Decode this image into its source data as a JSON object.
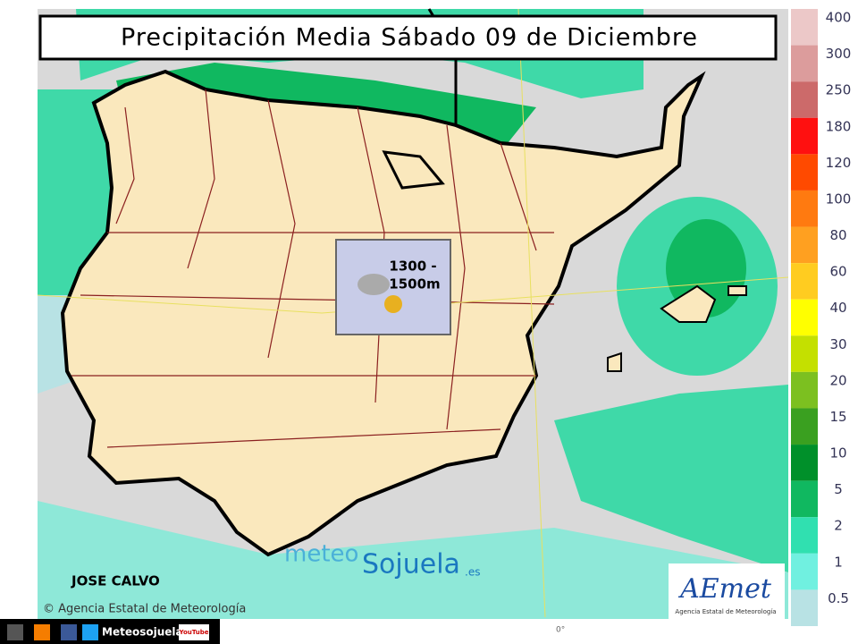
{
  "header": {
    "title": "Precipitación Media Sábado 09 de Diciembre"
  },
  "snow_level": {
    "line1": "1300 -",
    "line2": "1500m"
  },
  "author": "JOSE CALVO",
  "copyright": "© Agencia Estatal de Meteorología",
  "brand": {
    "meteo": "meteo",
    "sojuela": "Sojuela",
    "domain": ".es"
  },
  "aemet": {
    "logo": "AEmet",
    "caption": "Agencia Estatal de Meteorología"
  },
  "meridian_label": "0°",
  "footer": {
    "channel": "Meteosojuela",
    "youtube": "YouTube"
  },
  "legend": {
    "items": [
      {
        "label": "400",
        "color": "#ecc8c8"
      },
      {
        "label": "300",
        "color": "#dc9c9c"
      },
      {
        "label": "250",
        "color": "#cc6a6a"
      },
      {
        "label": "180",
        "color": "#ff1010"
      },
      {
        "label": "120",
        "color": "#ff4a00"
      },
      {
        "label": "100",
        "color": "#ff7a10"
      },
      {
        "label": "80",
        "color": "#ffa020"
      },
      {
        "label": "60",
        "color": "#ffcc20"
      },
      {
        "label": "40",
        "color": "#ffff00"
      },
      {
        "label": "30",
        "color": "#c4e000"
      },
      {
        "label": "20",
        "color": "#7cc020"
      },
      {
        "label": "15",
        "color": "#3aa020"
      },
      {
        "label": "10",
        "color": "#00902a"
      },
      {
        "label": "5",
        "color": "#10b860"
      },
      {
        "label": "2",
        "color": "#30e0b0"
      },
      {
        "label": "1",
        "color": "#70f0e0"
      },
      {
        "label": "0.5",
        "color": "#b8e2e4"
      }
    ]
  }
}
